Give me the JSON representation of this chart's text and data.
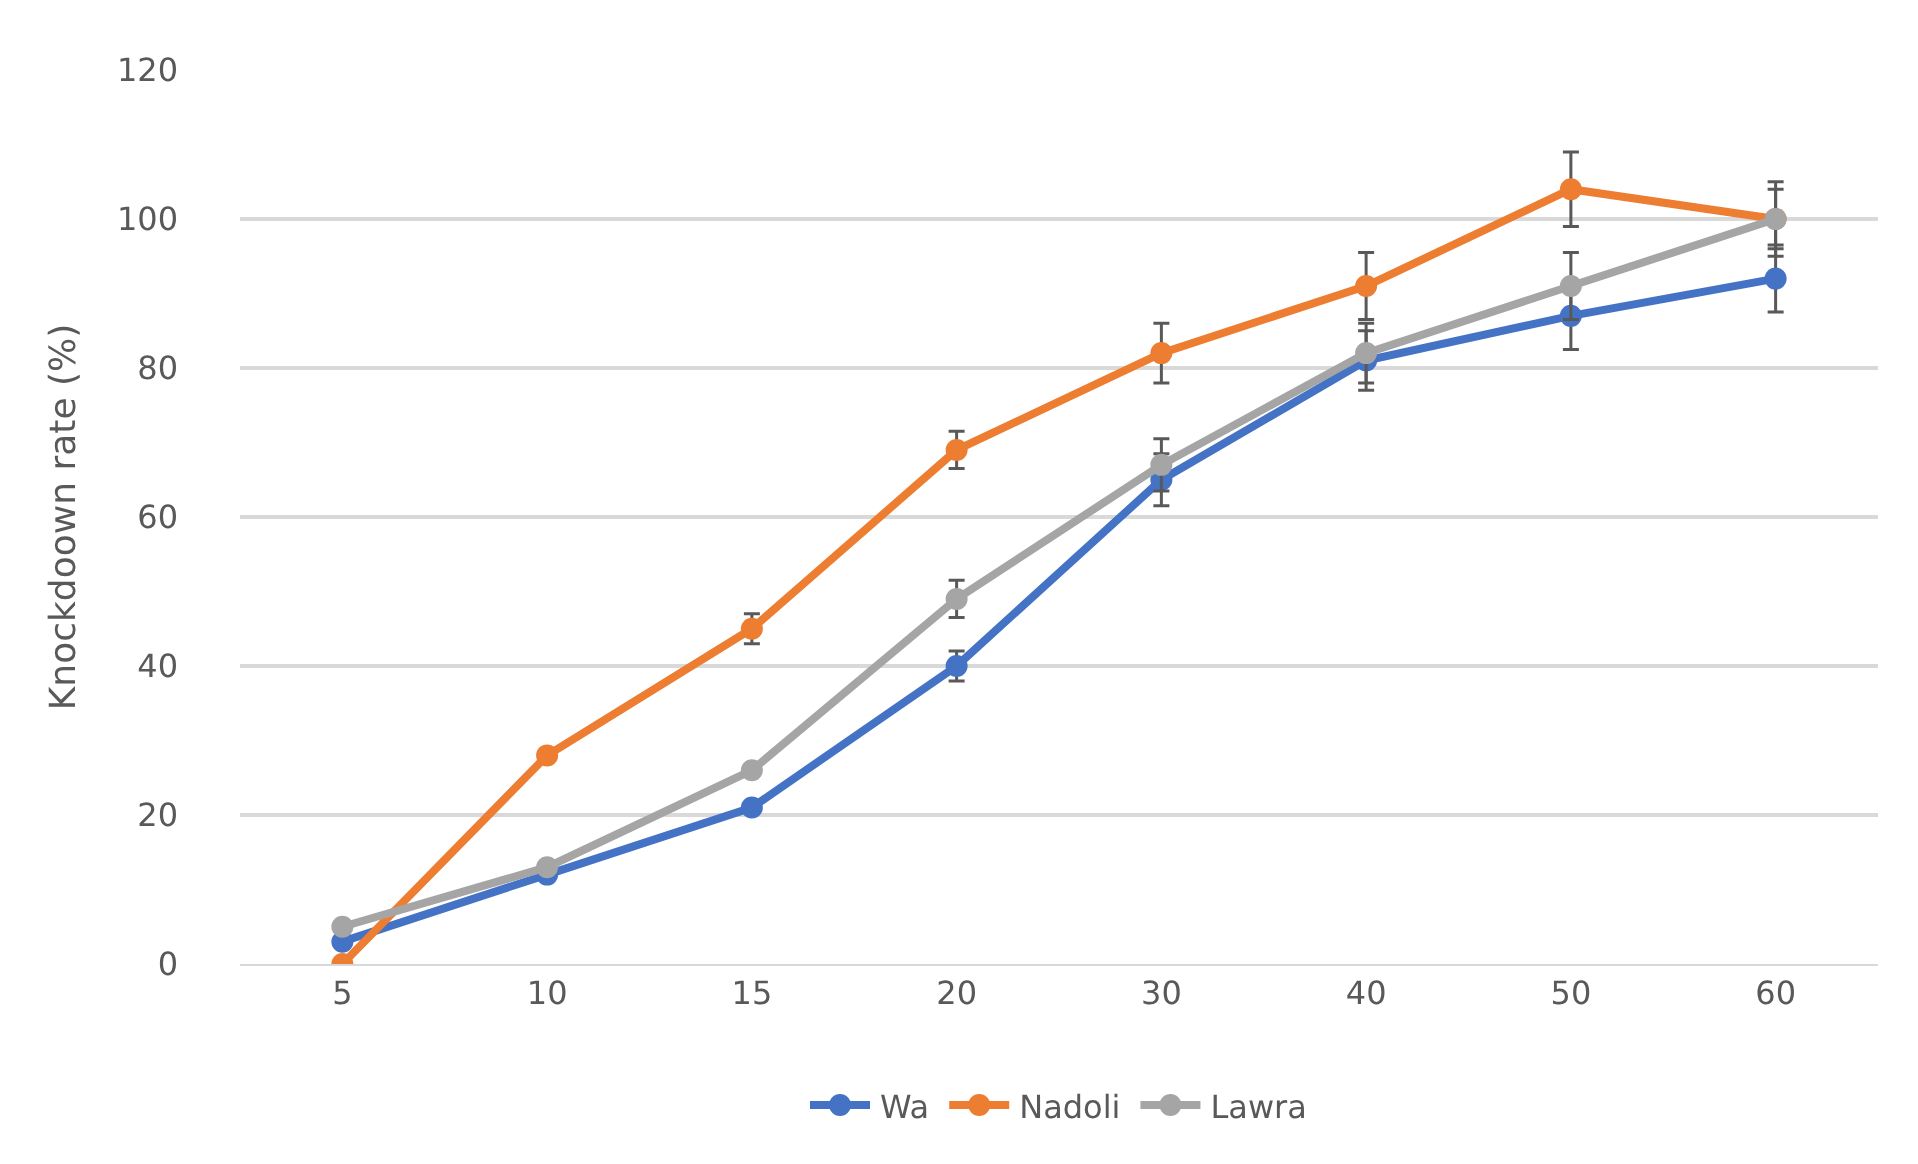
{
  "chart_data": {
    "type": "line",
    "ylabel": "Knockdoown rate (%)",
    "categories": [
      "5",
      "10",
      "15",
      "20",
      "30",
      "40",
      "50",
      "60"
    ],
    "series": [
      {
        "name": "Wa",
        "color": "#4472c4",
        "values": [
          3,
          12,
          21,
          40,
          65,
          81,
          87,
          92
        ],
        "errors": [
          null,
          null,
          null,
          2,
          3.5,
          4,
          4.5,
          4.5
        ]
      },
      {
        "name": "Nadoli",
        "color": "#ed7d31",
        "values": [
          0,
          28,
          45,
          69,
          82,
          91,
          104,
          100
        ],
        "errors": [
          null,
          null,
          2,
          2.5,
          4,
          4.5,
          5,
          5
        ]
      },
      {
        "name": "Lawra",
        "color": "#a5a5a5",
        "values": [
          5,
          13,
          26,
          49,
          67,
          82,
          91,
          100
        ],
        "errors": [
          null,
          null,
          null,
          2.5,
          3.5,
          4,
          4.5,
          4
        ]
      }
    ],
    "ylim": [
      0,
      120
    ],
    "yticks": [
      0,
      20,
      40,
      60,
      80,
      100,
      120
    ],
    "grid": "y",
    "legend": "bottom",
    "marker": "circle",
    "line_style": "solid"
  }
}
